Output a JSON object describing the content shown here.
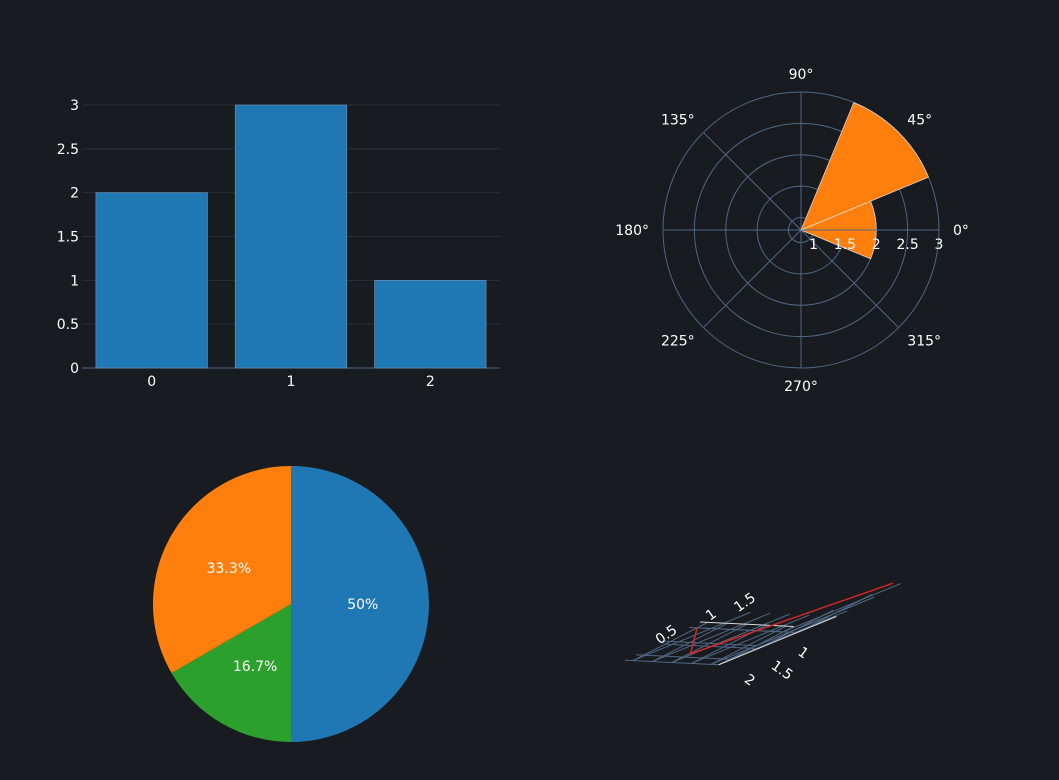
{
  "chart_data": [
    {
      "type": "bar",
      "categories": [
        "0",
        "1",
        "2"
      ],
      "values": [
        2,
        3,
        1
      ],
      "color": "#1f77b4",
      "ylim": [
        0,
        3
      ],
      "yticks": [
        "0",
        "0.5",
        "1",
        "1.5",
        "2",
        "2.5",
        "3"
      ],
      "grid": true
    },
    {
      "type": "barpolar",
      "r": [
        2,
        3
      ],
      "theta": [
        0,
        45
      ],
      "width_deg": 45,
      "color": "#ff7f0e",
      "radial_ticks": [
        "1",
        "1.5",
        "2",
        "2.5",
        "3"
      ],
      "angular_ticks": [
        "0°",
        "45°",
        "90°",
        "135°",
        "180°",
        "225°",
        "270°",
        "315°"
      ]
    },
    {
      "type": "pie",
      "values": [
        3,
        1,
        2
      ],
      "labels": [
        "50%",
        "16.7%",
        "33.3%"
      ],
      "colors": [
        "#1f77b4",
        "#2ca02c",
        "#ff7f0e"
      ]
    },
    {
      "type": "scatter3d",
      "mode": "lines",
      "x": [
        1,
        2,
        3
      ],
      "y": [
        1,
        2,
        1
      ],
      "z": [
        0.5,
        0.6,
        2
      ],
      "color": "#d62728",
      "z_ticks": [
        "0.5",
        "1",
        "1.5"
      ],
      "y_ticks": [
        "1",
        "1.5",
        "2"
      ]
    }
  ]
}
